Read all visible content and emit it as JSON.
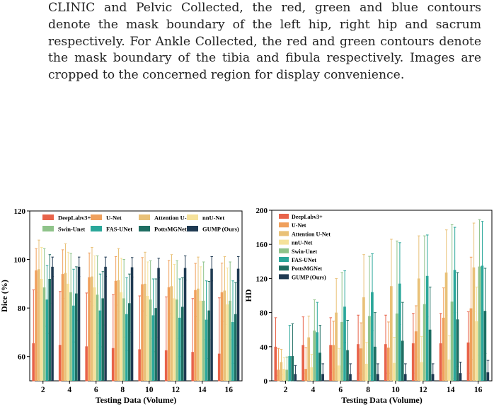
{
  "caption": {
    "text": "CLINIC and Pelvic Collected, the red, green and blue contours denote the mask boundary of the left hip, right hip and sacrum respectively. For Ankle Collected, the red and green contours denote the mask boundary of the tibia and fibula respectively. Images are cropped to the concerned region for display convenience."
  },
  "colors": {
    "DeepLabv3+": "#e8634a",
    "U-Net": "#f0a05c",
    "Attention U-Net": "#e9c178",
    "nnU-Net": "#f6e29a",
    "Swin-Unet": "#8fc38a",
    "FAS-UNet": "#2aa79a",
    "PottsMGNet": "#1f6e62",
    "GUMP (Ours)": "#1f3a52"
  },
  "chart_data": [
    {
      "type": "bar",
      "xlabel": "Testing Data (Volume)",
      "ylabel": "Dice (%)",
      "ylim": [
        50,
        120
      ],
      "yticks": [
        60,
        80,
        100,
        120
      ],
      "categories": [
        "2",
        "4",
        "6",
        "8",
        "10",
        "12",
        "14",
        "16"
      ],
      "legend": "top",
      "error_bars": true,
      "series": [
        {
          "name": "DeepLabv3+",
          "values": [
            65.5,
            64.8,
            64.2,
            63.5,
            63.0,
            62.6,
            61.9,
            61.2
          ],
          "err": [
            22,
            22,
            22,
            22,
            22,
            22,
            22,
            23
          ]
        },
        {
          "name": "U-Net",
          "values": [
            95.5,
            94.0,
            92.7,
            91.2,
            89.8,
            88.6,
            87.4,
            86.5
          ],
          "err": [
            9,
            10,
            10,
            10,
            11,
            11,
            11,
            12
          ]
        },
        {
          "name": "Attention U-Net",
          "values": [
            96.0,
            94.5,
            93.0,
            91.5,
            90.0,
            89.0,
            88.0,
            87.2
          ],
          "err": [
            12,
            12,
            12,
            13,
            13,
            13,
            13,
            14
          ]
        },
        {
          "name": "nnU-Net",
          "values": [
            92.0,
            90.0,
            88.5,
            86.5,
            85.0,
            84.0,
            83.0,
            81.5
          ],
          "err": [
            13,
            13,
            13,
            14,
            14,
            14,
            14,
            15
          ]
        },
        {
          "name": "Swin-Unet",
          "values": [
            88.5,
            86.5,
            85.5,
            84.0,
            83.5,
            83.5,
            83.0,
            83.0
          ],
          "err": [
            16,
            16,
            16,
            16,
            16,
            16,
            16,
            16
          ]
        },
        {
          "name": "FAS-UNet",
          "values": [
            83.5,
            81.0,
            79.0,
            77.5,
            77.0,
            76.0,
            75.2,
            74.2
          ],
          "err": [
            14,
            15,
            15,
            15,
            15,
            16,
            16,
            17
          ]
        },
        {
          "name": "PottsMGNet",
          "values": [
            92.0,
            86.0,
            84.0,
            82.0,
            80.0,
            80.5,
            79.0,
            77.5
          ],
          "err": [
            10,
            11,
            11,
            12,
            12,
            12,
            12,
            13
          ]
        },
        {
          "name": "GUMP (Ours)",
          "values": [
            97.0,
            97.0,
            97.0,
            96.8,
            96.5,
            96.5,
            96.2,
            96.2
          ],
          "err": [
            4,
            4,
            4,
            4,
            4,
            5,
            5,
            5
          ]
        }
      ]
    },
    {
      "type": "bar",
      "xlabel": "Testing Data (Volume)",
      "ylabel": "HD",
      "ylim": [
        0,
        200
      ],
      "yticks": [
        0,
        40,
        80,
        120,
        160,
        200
      ],
      "categories": [
        "2",
        "4",
        "6",
        "8",
        "10",
        "12",
        "14",
        "16"
      ],
      "legend": "top-left",
      "error_bars": true,
      "series": [
        {
          "name": "DeepLabv3+",
          "values": [
            40,
            42,
            42,
            43,
            43,
            44,
            44,
            45
          ],
          "err": [
            34,
            33,
            32,
            34,
            34,
            35,
            35,
            36
          ]
        },
        {
          "name": "U-Net",
          "values": [
            13,
            14,
            42,
            38,
            39,
            58,
            74,
            85
          ],
          "err": [
            25,
            25,
            28,
            30,
            30,
            30,
            35,
            60
          ]
        },
        {
          "name": "Attention U-Net",
          "values": [
            22,
            51,
            80,
            98,
            111,
            120,
            127,
            133
          ],
          "err": [
            15,
            25,
            40,
            50,
            55,
            50,
            50,
            52
          ]
        },
        {
          "name": "nnU-Net",
          "values": [
            14,
            16,
            18,
            20,
            21,
            22,
            25,
            70
          ],
          "err": [
            13,
            15,
            20,
            25,
            30,
            30,
            28,
            40
          ]
        },
        {
          "name": "Swin-Unet",
          "values": [
            13,
            59,
            69,
            76,
            79,
            90,
            93,
            134
          ],
          "err": [
            15,
            36,
            58,
            70,
            85,
            80,
            90,
            55
          ]
        },
        {
          "name": "FAS-UNet",
          "values": [
            29,
            57,
            87,
            104,
            114,
            123,
            130,
            135
          ],
          "err": [
            36,
            35,
            42,
            45,
            48,
            48,
            50,
            52
          ]
        },
        {
          "name": "PottsMGNet",
          "values": [
            29,
            33,
            36,
            40,
            47,
            60,
            72,
            82
          ],
          "err": [
            38,
            32,
            35,
            40,
            45,
            50,
            55,
            50
          ]
        },
        {
          "name": "GUMP (Ours)",
          "values": [
            8,
            8,
            8,
            8,
            8,
            8,
            9,
            10
          ],
          "err": [
            10,
            12,
            12,
            12,
            12,
            12,
            13,
            14
          ]
        }
      ]
    }
  ]
}
